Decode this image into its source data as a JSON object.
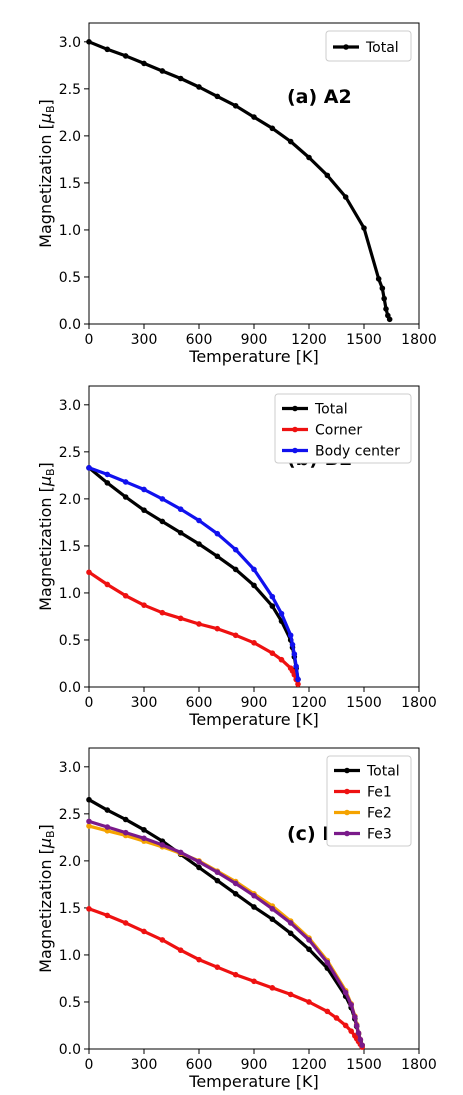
{
  "chart_data": [
    {
      "type": "line",
      "annotation": "(a) A2",
      "xlabel": "Temperature [K]",
      "ylabel": "Magnetization [μB]",
      "xlim": [
        0,
        1800
      ],
      "ylim": [
        0,
        3.2
      ],
      "xticks": [
        "0",
        "300",
        "600",
        "900",
        "1200",
        "1500",
        "1800"
      ],
      "yticks": [
        "0.0",
        "0.5",
        "1.0",
        "1.5",
        "2.0",
        "2.5",
        "3.0"
      ],
      "grid": false,
      "legend_position": "upper right",
      "series": [
        {
          "name": "Total",
          "color": "#000000",
          "x": [
            0,
            100,
            200,
            300,
            400,
            500,
            600,
            700,
            800,
            900,
            1000,
            1100,
            1200,
            1300,
            1400,
            1500,
            1580,
            1600,
            1610,
            1620,
            1630,
            1640
          ],
          "y": [
            3.0,
            2.92,
            2.85,
            2.77,
            2.69,
            2.61,
            2.52,
            2.42,
            2.32,
            2.2,
            2.08,
            1.94,
            1.77,
            1.58,
            1.35,
            1.02,
            0.48,
            0.38,
            0.27,
            0.16,
            0.09,
            0.05
          ]
        }
      ]
    },
    {
      "type": "line",
      "annotation": "(b) B2",
      "xlabel": "Temperature [K]",
      "ylabel": "Magnetization [μB]",
      "xlim": [
        0,
        1800
      ],
      "ylim": [
        0,
        3.2
      ],
      "xticks": [
        "0",
        "300",
        "600",
        "900",
        "1200",
        "1500",
        "1800"
      ],
      "yticks": [
        "0.0",
        "0.5",
        "1.0",
        "1.5",
        "2.0",
        "2.5",
        "3.0"
      ],
      "grid": false,
      "legend_position": "upper right",
      "series": [
        {
          "name": "Total",
          "color": "#000000",
          "x": [
            0,
            100,
            200,
            300,
            400,
            500,
            600,
            700,
            800,
            900,
            1000,
            1050,
            1100,
            1110,
            1120,
            1130,
            1140
          ],
          "y": [
            2.33,
            2.17,
            2.02,
            1.88,
            1.76,
            1.64,
            1.52,
            1.39,
            1.25,
            1.08,
            0.86,
            0.7,
            0.5,
            0.42,
            0.32,
            0.2,
            0.08
          ]
        },
        {
          "name": "Corner",
          "color": "#ee1111",
          "x": [
            0,
            100,
            200,
            300,
            400,
            500,
            600,
            700,
            800,
            900,
            1000,
            1050,
            1100,
            1110,
            1120,
            1130,
            1140
          ],
          "y": [
            1.22,
            1.09,
            0.97,
            0.87,
            0.79,
            0.73,
            0.67,
            0.62,
            0.55,
            0.47,
            0.36,
            0.29,
            0.2,
            0.17,
            0.13,
            0.08,
            0.03
          ]
        },
        {
          "name": "Body center",
          "color": "#1111ee",
          "x": [
            0,
            100,
            200,
            300,
            400,
            500,
            600,
            700,
            800,
            900,
            1000,
            1050,
            1100,
            1110,
            1120,
            1130,
            1140
          ],
          "y": [
            2.33,
            2.26,
            2.18,
            2.1,
            2.0,
            1.89,
            1.77,
            1.63,
            1.46,
            1.25,
            0.96,
            0.78,
            0.55,
            0.45,
            0.35,
            0.22,
            0.08
          ]
        }
      ]
    },
    {
      "type": "line",
      "annotation": "(c) DO3",
      "xlabel": "Temperature [K]",
      "ylabel": "Magnetization [μB]",
      "xlim": [
        0,
        1800
      ],
      "ylim": [
        0,
        3.2
      ],
      "xticks": [
        "0",
        "300",
        "600",
        "900",
        "1200",
        "1500",
        "1800"
      ],
      "yticks": [
        "0.0",
        "0.5",
        "1.0",
        "1.5",
        "2.0",
        "2.5",
        "3.0"
      ],
      "grid": false,
      "legend_position": "upper right",
      "series": [
        {
          "name": "Total",
          "color": "#000000",
          "x": [
            0,
            100,
            200,
            300,
            400,
            500,
            600,
            700,
            800,
            900,
            1000,
            1100,
            1200,
            1300,
            1400,
            1430,
            1450,
            1460,
            1470,
            1480,
            1490
          ],
          "y": [
            2.65,
            2.54,
            2.44,
            2.33,
            2.21,
            2.07,
            1.93,
            1.79,
            1.65,
            1.51,
            1.38,
            1.23,
            1.06,
            0.86,
            0.56,
            0.44,
            0.32,
            0.24,
            0.16,
            0.09,
            0.04
          ]
        },
        {
          "name": "Fe1",
          "color": "#ee1111",
          "x": [
            0,
            100,
            200,
            300,
            400,
            500,
            600,
            700,
            800,
            900,
            1000,
            1100,
            1200,
            1300,
            1350,
            1400,
            1430,
            1450,
            1460,
            1470,
            1480,
            1490
          ],
          "y": [
            1.49,
            1.42,
            1.34,
            1.25,
            1.16,
            1.05,
            0.95,
            0.87,
            0.79,
            0.72,
            0.65,
            0.58,
            0.5,
            0.4,
            0.33,
            0.25,
            0.19,
            0.14,
            0.11,
            0.08,
            0.05,
            0.02
          ]
        },
        {
          "name": "Fe2",
          "color": "#f5a300",
          "x": [
            0,
            100,
            200,
            300,
            400,
            500,
            600,
            700,
            800,
            900,
            1000,
            1100,
            1200,
            1300,
            1400,
            1430,
            1450,
            1460,
            1470,
            1480,
            1490
          ],
          "y": [
            2.37,
            2.32,
            2.27,
            2.21,
            2.15,
            2.08,
            2.0,
            1.89,
            1.78,
            1.65,
            1.52,
            1.36,
            1.18,
            0.94,
            0.62,
            0.48,
            0.35,
            0.26,
            0.17,
            0.1,
            0.04
          ]
        },
        {
          "name": "Fe3",
          "color": "#7a1a8a",
          "x": [
            0,
            100,
            200,
            300,
            400,
            500,
            600,
            700,
            800,
            900,
            1000,
            1100,
            1200,
            1300,
            1400,
            1430,
            1450,
            1460,
            1470,
            1480,
            1490
          ],
          "y": [
            2.42,
            2.36,
            2.3,
            2.24,
            2.17,
            2.09,
            1.99,
            1.88,
            1.76,
            1.63,
            1.49,
            1.34,
            1.16,
            0.92,
            0.6,
            0.47,
            0.34,
            0.25,
            0.17,
            0.1,
            0.04
          ]
        }
      ]
    }
  ]
}
